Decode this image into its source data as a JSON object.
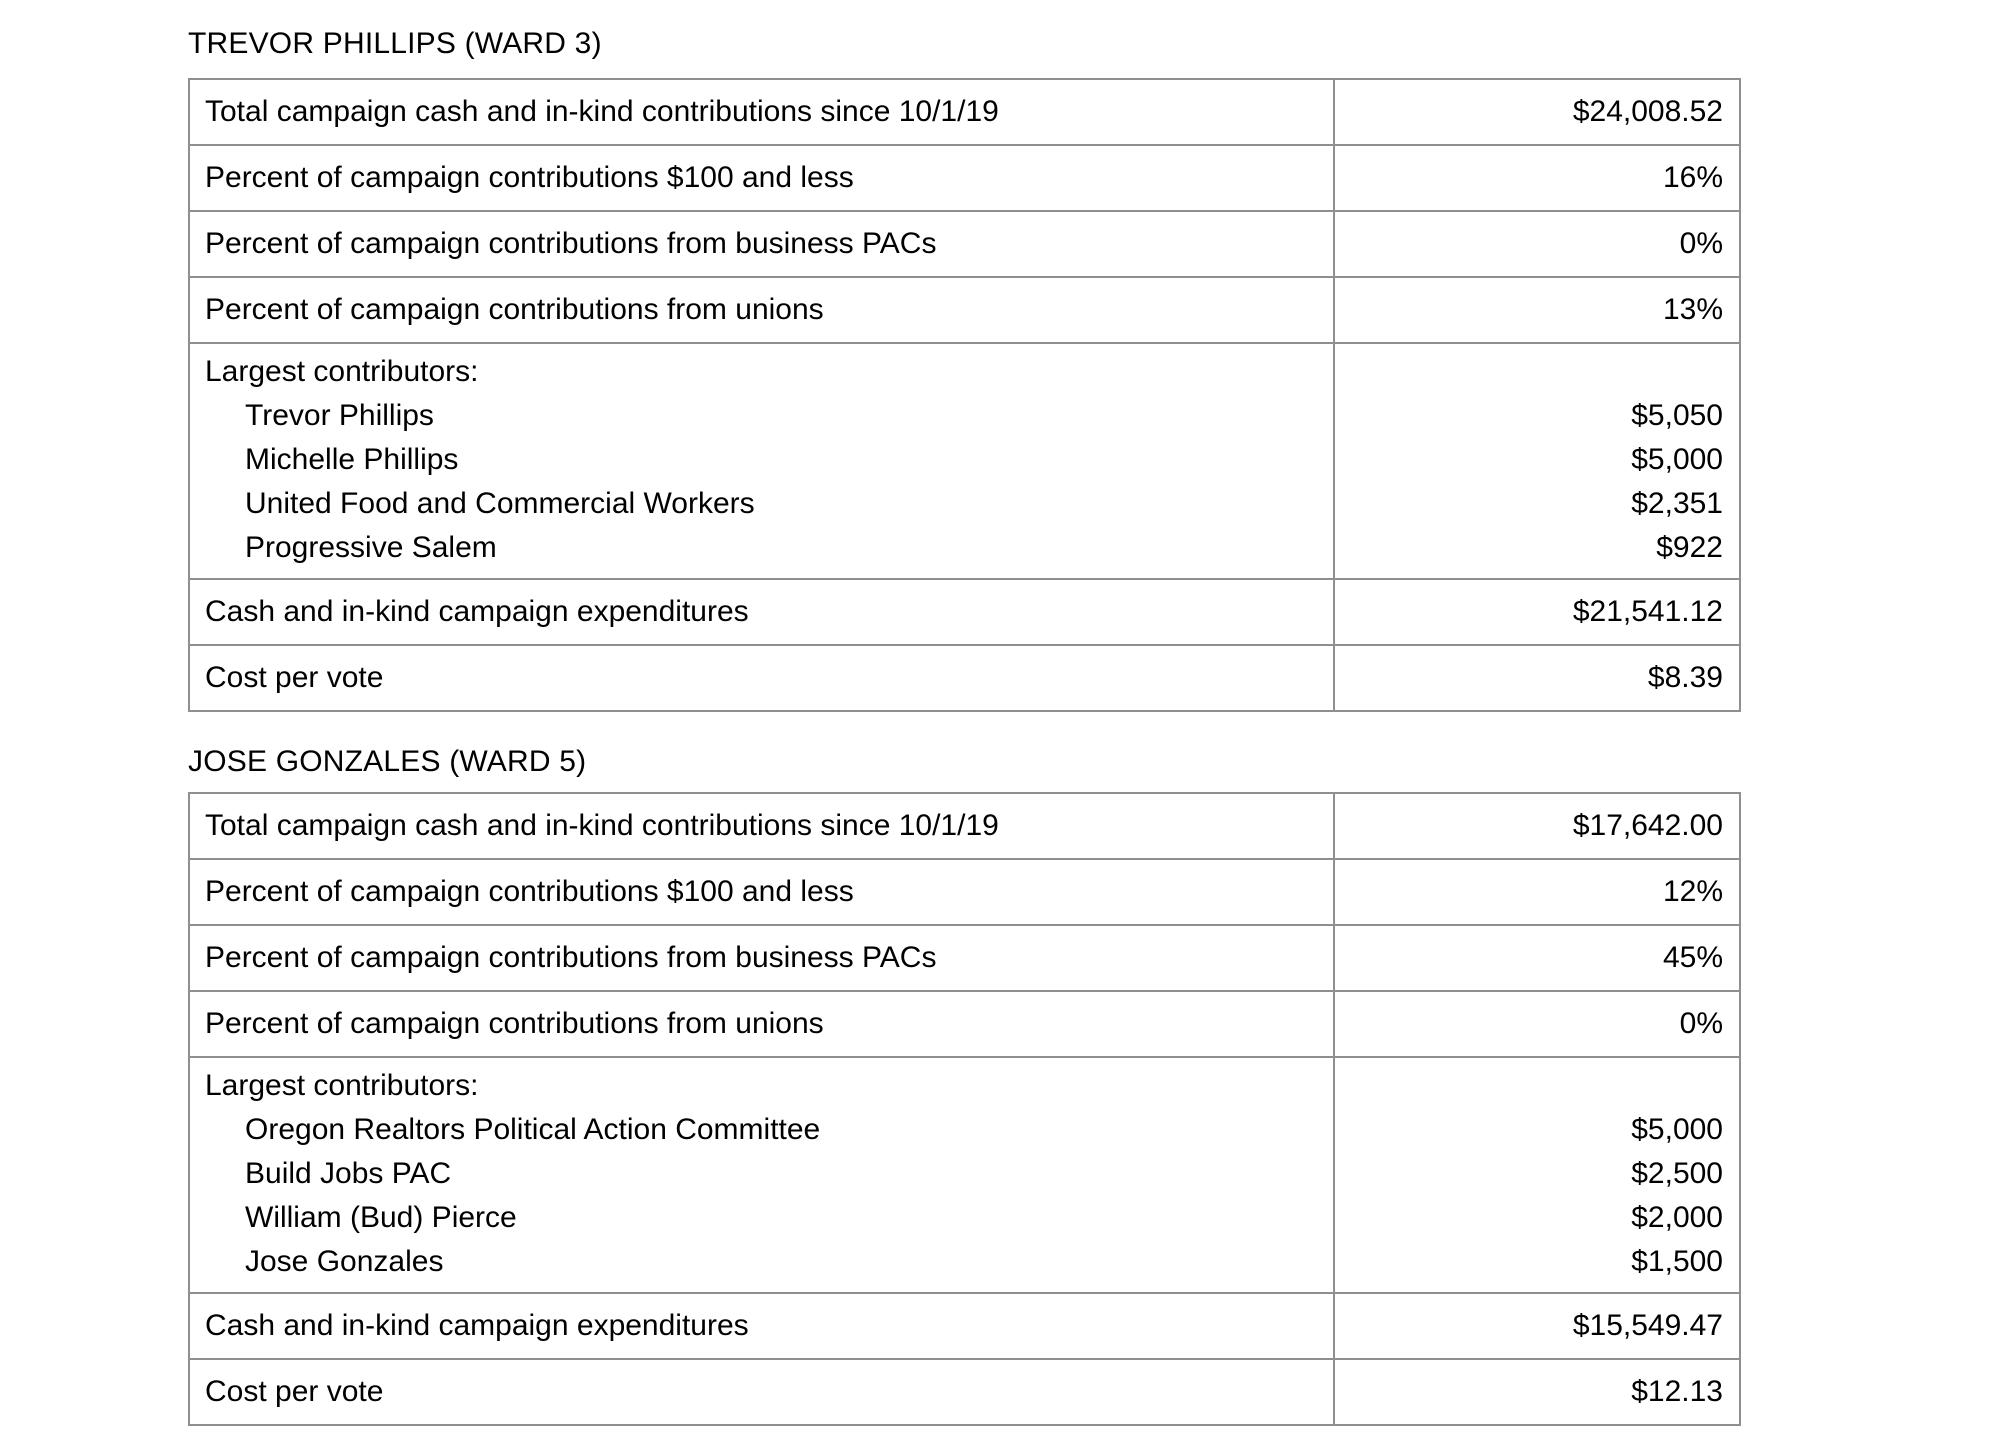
{
  "document": {
    "background": "#ffffff",
    "border_color": "#8f8f8f",
    "text_color": "#000000"
  },
  "tables": [
    {
      "heading": "TREVOR PHILLIPS (WARD 3)",
      "rows": [
        {
          "label": "Total campaign cash and in-kind contributions since 10/1/19",
          "value": "$24,008.52"
        },
        {
          "label": "Percent of campaign contributions $100 and less",
          "value": "16%"
        },
        {
          "label": "Percent of campaign contributions from business PACs",
          "value": "0%"
        },
        {
          "label": "Percent of campaign contributions from unions",
          "value": "13%"
        },
        {
          "label": "Largest contributors:",
          "value": "",
          "sub_rows": [
            {
              "label": "Trevor Phillips",
              "value": "$5,050"
            },
            {
              "label": "Michelle Phillips",
              "value": "$5,000"
            },
            {
              "label": "United Food and Commercial Workers",
              "value": "$2,351"
            },
            {
              "label": "Progressive Salem",
              "value": "$922"
            }
          ]
        },
        {
          "label": "Cash and in-kind campaign expenditures",
          "value": "$21,541.12"
        },
        {
          "label": "Cost per vote",
          "value": "$8.39"
        }
      ]
    },
    {
      "heading": "JOSE GONZALES (WARD 5)",
      "rows": [
        {
          "label": "Total campaign cash and in-kind contributions since 10/1/19",
          "value": "$17,642.00"
        },
        {
          "label": "Percent of campaign contributions $100 and less",
          "value": "12%"
        },
        {
          "label": "Percent of campaign contributions from business PACs",
          "value": "45%"
        },
        {
          "label": "Percent of campaign contributions from unions",
          "value": "0%"
        },
        {
          "label": "Largest contributors:",
          "value": "",
          "sub_rows": [
            {
              "label": "Oregon Realtors Political Action Committee",
              "value": "$5,000"
            },
            {
              "label": "Build Jobs PAC",
              "value": "$2,500"
            },
            {
              "label": "William (Bud) Pierce",
              "value": "$2,000"
            },
            {
              "label": "Jose Gonzales",
              "value": "$1,500"
            }
          ]
        },
        {
          "label": "Cash and in-kind campaign expenditures",
          "value": "$15,549.47"
        },
        {
          "label": "Cost per vote",
          "value": "$12.13"
        }
      ]
    }
  ]
}
